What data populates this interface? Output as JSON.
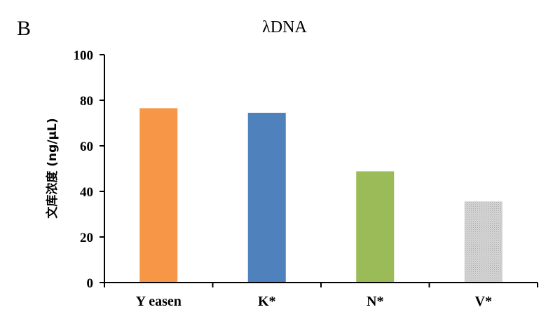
{
  "chart_data": {
    "type": "bar",
    "panel_label": "B",
    "title": "λDNA",
    "ylabel": "文库浓度 (ng/μL)",
    "xlabel": "",
    "categories": [
      "Y easen",
      "K*",
      "N*",
      "V*"
    ],
    "values": [
      76.5,
      74.5,
      48.8,
      35.6
    ],
    "colors": [
      "#f79646",
      "#4f81bd",
      "#9bbb59",
      "#c8c8c8"
    ],
    "patterns": [
      "solid",
      "solid",
      "solid",
      "dotted"
    ],
    "ylim": [
      0,
      100
    ],
    "yticks": [
      0,
      20,
      40,
      60,
      80,
      100
    ],
    "grid": false,
    "legend": "none"
  }
}
